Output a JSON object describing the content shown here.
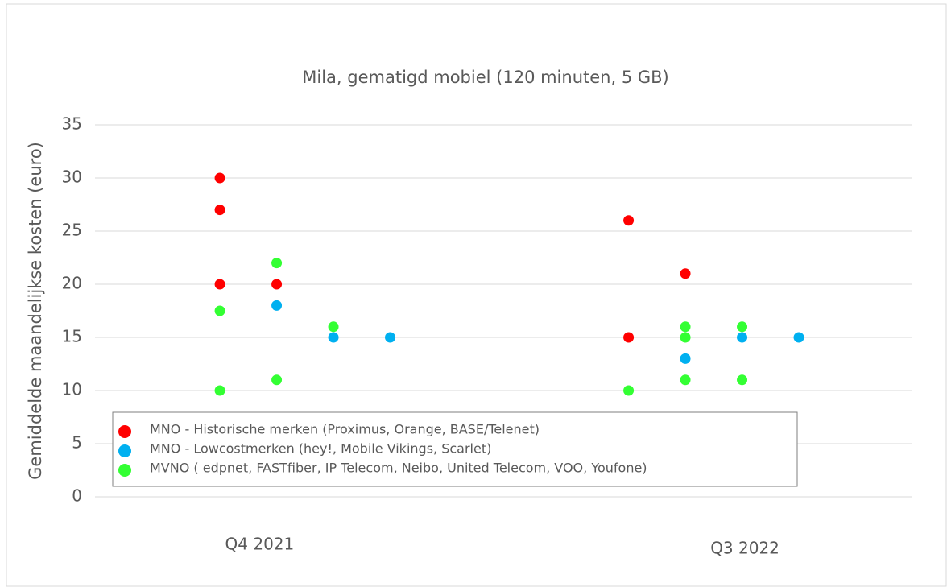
{
  "chart_data": {
    "type": "scatter",
    "title": "Mila, gematigd mobiel (120 minuten, 5 GB)",
    "y_label": "Gemiddelde maandelijkse kosten (euro)",
    "xlabels": [
      {
        "value": 2.9,
        "label": "Q4 2021"
      },
      {
        "value": 11.45,
        "label": "Q3 2022"
      }
    ],
    "xlim": [
      0,
      14.4
    ],
    "ylim": [
      0,
      35
    ],
    "yticks": [
      0,
      5,
      10,
      15,
      20,
      25,
      30,
      35
    ],
    "grid": true,
    "legend": "bottom-left",
    "series": [
      {
        "name": "MNO - Historische merken (Proximus, Orange, BASE/Telenet)",
        "color": "#ff0000",
        "x": [
          2.2,
          2.2,
          2.2,
          3.2,
          9.4,
          9.4,
          10.4
        ],
        "values": [
          30,
          27,
          20,
          20,
          26,
          15,
          21
        ]
      },
      {
        "name": "MNO - Lowcostmerken (hey!, Mobile Vikings, Scarlet)",
        "color": "#00b0f0",
        "x": [
          3.2,
          4.2,
          5.2,
          10.4,
          11.4,
          12.4
        ],
        "values": [
          18,
          15,
          15,
          13,
          15,
          15
        ]
      },
      {
        "name": "MVNO ( edpnet,  FASTfiber, IP Telecom, Neibo, United Telecom, VOO, Youfone)",
        "color": "#33ff33",
        "x": [
          2.2,
          2.2,
          3.2,
          3.2,
          4.2,
          9.4,
          10.4,
          10.4,
          10.4,
          11.4,
          11.4
        ],
        "values": [
          17.5,
          10,
          22,
          11,
          16,
          10,
          16,
          15,
          11,
          16,
          11
        ]
      }
    ]
  }
}
